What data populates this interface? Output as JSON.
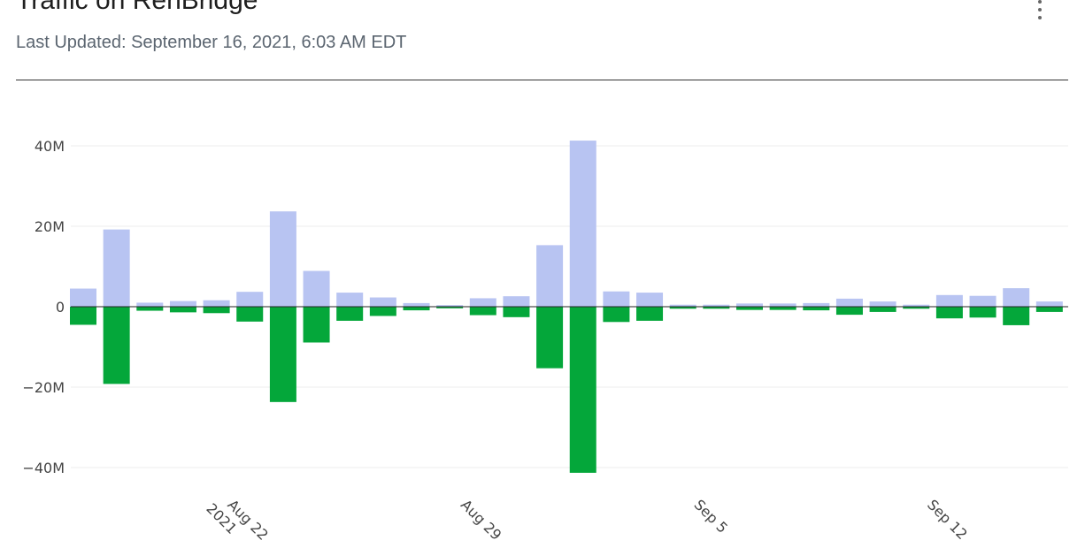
{
  "header": {
    "title": "Traffic on RenBridge",
    "subtitle": "Last Updated: September 16, 2021, 6:03 AM EDT",
    "menu_icon": "more-vertical-icon"
  },
  "colors": {
    "positive": "#b8c4f2",
    "negative": "#04a73a",
    "grid": "#ececec",
    "zero_line": "#222222"
  },
  "chart_data": {
    "type": "bar",
    "ylim": [
      -50,
      50
    ],
    "yticks": [
      -40,
      -20,
      0,
      20,
      40
    ],
    "ytick_labels": [
      "−40M",
      "−20M",
      "0",
      "20M",
      "40M"
    ],
    "grid": true,
    "xtick_labels": [
      {
        "date": "2021-08-22",
        "lines": [
          "Aug 22",
          "2021"
        ]
      },
      {
        "date": "2021-08-29",
        "lines": [
          "Aug 29"
        ]
      },
      {
        "date": "2021-09-05",
        "lines": [
          "Sep 5"
        ]
      },
      {
        "date": "2021-09-12",
        "lines": [
          "Sep 12"
        ]
      }
    ],
    "x": [
      "2021-08-17",
      "2021-08-18",
      "2021-08-19",
      "2021-08-20",
      "2021-08-21",
      "2021-08-22",
      "2021-08-23",
      "2021-08-24",
      "2021-08-25",
      "2021-08-26",
      "2021-08-27",
      "2021-08-28",
      "2021-08-29",
      "2021-08-30",
      "2021-08-31",
      "2021-09-01",
      "2021-09-02",
      "2021-09-03",
      "2021-09-04",
      "2021-09-05",
      "2021-09-06",
      "2021-09-07",
      "2021-09-08",
      "2021-09-09",
      "2021-09-10",
      "2021-09-11",
      "2021-09-12",
      "2021-09-13",
      "2021-09-14",
      "2021-09-15",
      "2021-09-16"
    ],
    "series": [
      {
        "values": [
          4.5,
          19.2,
          1.0,
          1.4,
          1.6,
          3.7,
          23.7,
          8.9,
          3.5,
          2.3,
          0.9,
          0.4,
          2.1,
          2.6,
          15.3,
          41.3,
          3.8,
          3.5,
          0.5,
          0.5,
          0.8,
          0.8,
          0.9,
          2.0,
          1.3,
          0.5,
          2.9,
          2.7,
          4.6,
          1.3,
          0
        ]
      },
      {
        "values": [
          -4.5,
          -19.2,
          -1.0,
          -1.4,
          -1.6,
          -3.7,
          -23.7,
          -8.9,
          -3.5,
          -2.3,
          -0.9,
          -0.4,
          -2.1,
          -2.6,
          -15.3,
          -41.3,
          -3.8,
          -3.5,
          -0.5,
          -0.5,
          -0.8,
          -0.8,
          -0.9,
          -2.0,
          -1.3,
          -0.5,
          -2.9,
          -2.7,
          -4.6,
          -1.3,
          0
        ]
      }
    ]
  }
}
